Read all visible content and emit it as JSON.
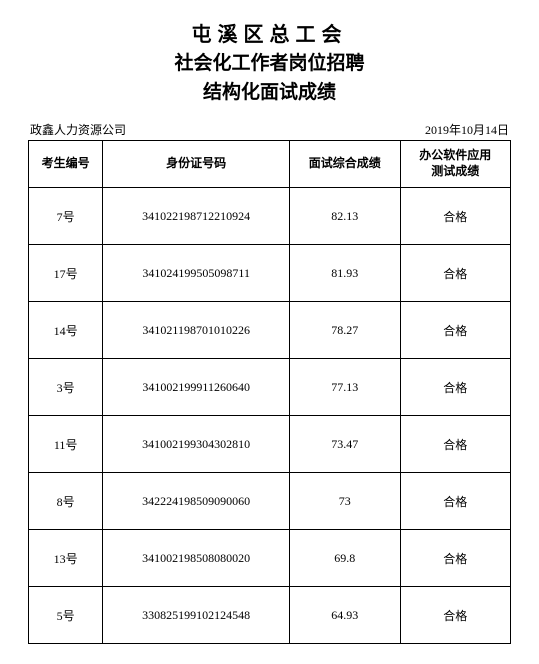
{
  "title": {
    "line1": "屯溪区总工会",
    "line2": "社会化工作者岗位招聘",
    "line3": "结构化面试成绩"
  },
  "meta": {
    "company": "政鑫人力资源公司",
    "date": "2019年10月14日"
  },
  "table": {
    "columns": [
      "考生编号",
      "身份证号码",
      "面试综合成绩",
      "办公软件应用\n测试成绩"
    ],
    "rows": [
      [
        "7号",
        "341022198712210924",
        "82.13",
        "合格"
      ],
      [
        "17号",
        "341024199505098711",
        "81.93",
        "合格"
      ],
      [
        "14号",
        "341021198701010226",
        "78.27",
        "合格"
      ],
      [
        "3号",
        "341002199911260640",
        "77.13",
        "合格"
      ],
      [
        "11号",
        "341002199304302810",
        "73.47",
        "合格"
      ],
      [
        "8号",
        "342224198509090060",
        "73",
        "合格"
      ],
      [
        "13号",
        "341002198508080020",
        "69.8",
        "合格"
      ],
      [
        "5号",
        "330825199102124548",
        "64.93",
        "合格"
      ]
    ]
  }
}
